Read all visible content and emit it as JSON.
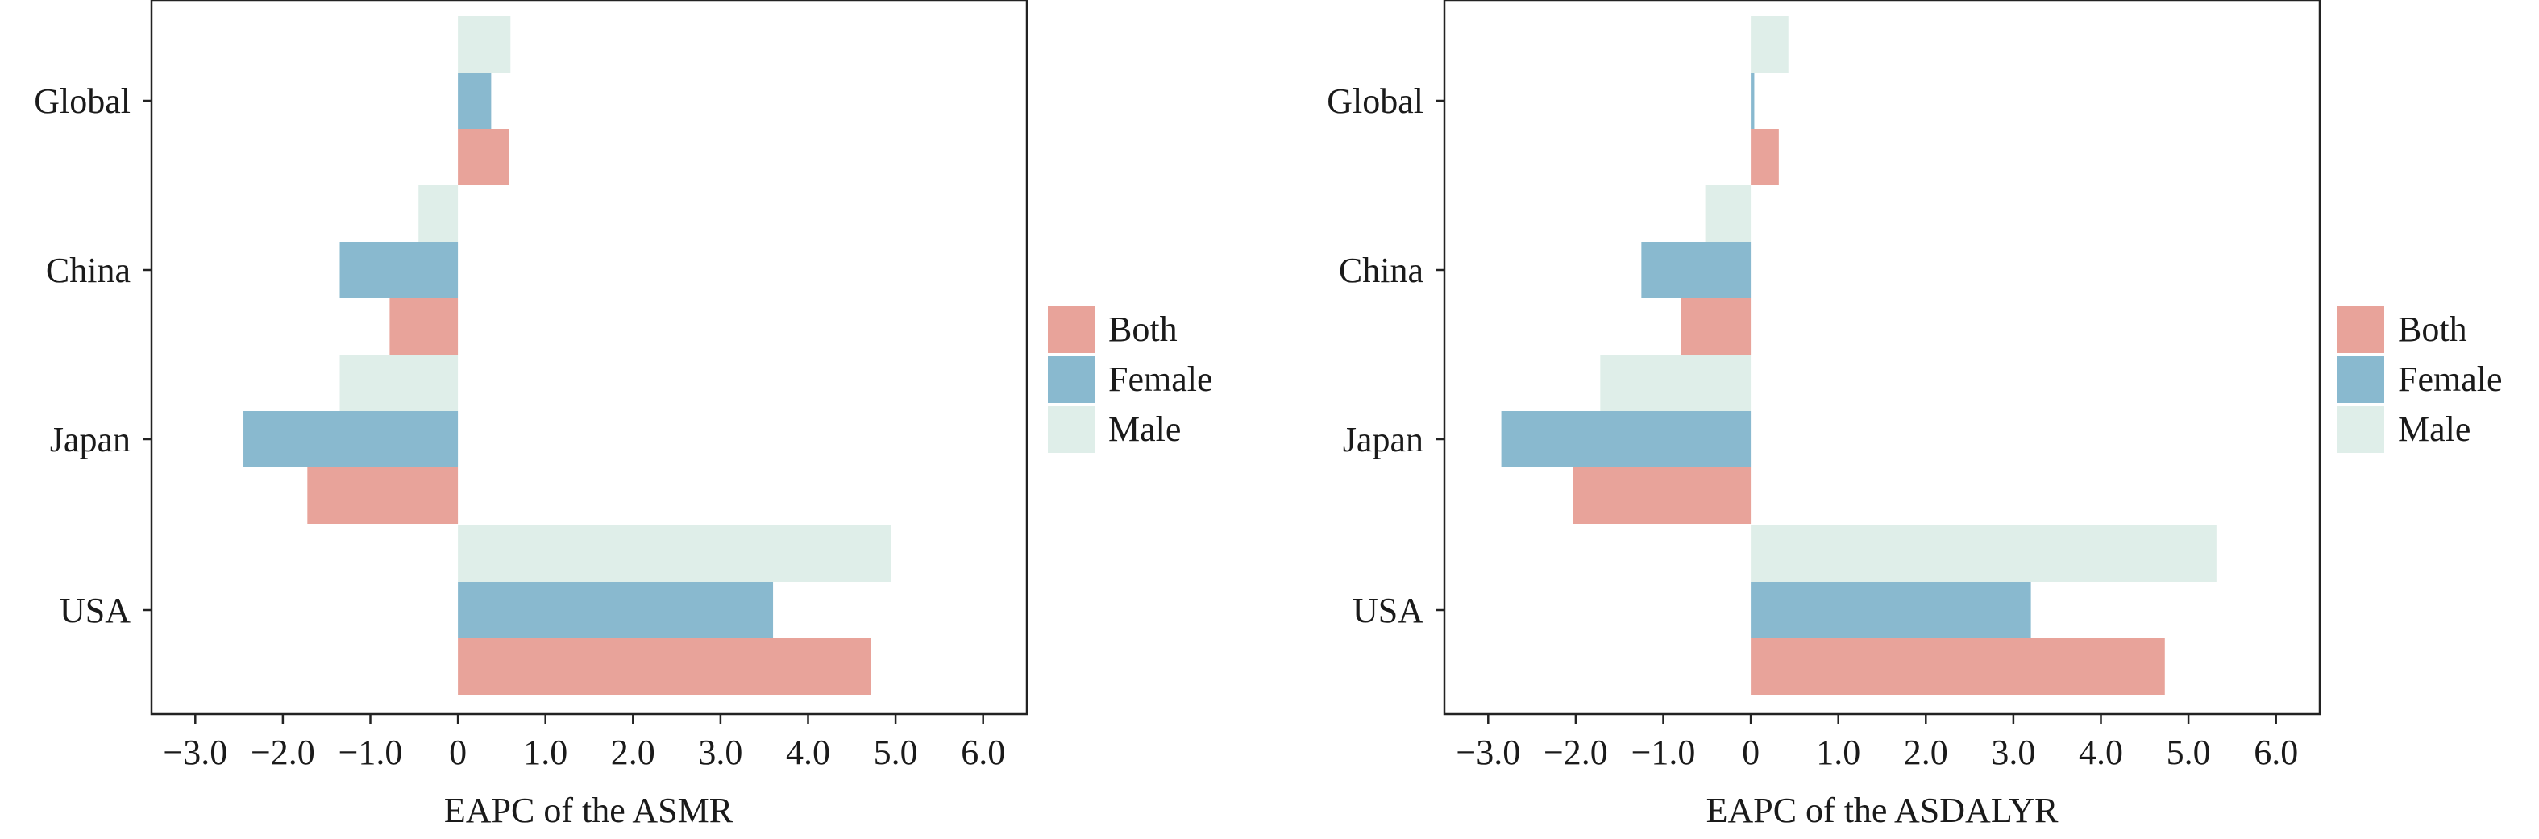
{
  "chart_data": [
    {
      "type": "bar",
      "orientation": "horizontal",
      "categories": [
        "Global",
        "China",
        "Japan",
        "USA"
      ],
      "series": [
        {
          "name": "Male",
          "color": "#dfeee9",
          "values": [
            0.6,
            -0.45,
            -1.35,
            4.95
          ]
        },
        {
          "name": "Female",
          "color": "#89b9cf",
          "values": [
            0.38,
            -1.35,
            -2.45,
            3.6
          ]
        },
        {
          "name": "Both",
          "color": "#e8a39a",
          "values": [
            0.58,
            -0.78,
            -1.72,
            4.72
          ]
        }
      ],
      "legend": [
        "Both",
        "Female",
        "Male"
      ],
      "xlabel": "EAPC of the ASMR",
      "xlim": [
        -3.5,
        6.5
      ],
      "ticks": [
        -3,
        -2,
        -1,
        0,
        1,
        2,
        3,
        4,
        5,
        6
      ],
      "tick_labels": [
        "−3.0",
        "−2.0",
        "−1.0",
        "0",
        "1.0",
        "2.0",
        "3.0",
        "4.0",
        "5.0",
        "6.0"
      ],
      "legend_position": "right"
    },
    {
      "type": "bar",
      "orientation": "horizontal",
      "categories": [
        "Global",
        "China",
        "Japan",
        "USA"
      ],
      "series": [
        {
          "name": "Male",
          "color": "#dfeee9",
          "values": [
            0.43,
            -0.52,
            -1.72,
            5.32
          ]
        },
        {
          "name": "Female",
          "color": "#89b9cf",
          "values": [
            0.04,
            -1.25,
            -2.85,
            3.2
          ]
        },
        {
          "name": "Both",
          "color": "#e8a39a",
          "values": [
            0.32,
            -0.8,
            -2.03,
            4.73
          ]
        }
      ],
      "legend": [
        "Both",
        "Female",
        "Male"
      ],
      "xlabel": "EAPC of the ASDALYR",
      "xlim": [
        -3.5,
        6.5
      ],
      "ticks": [
        -3,
        -2,
        -1,
        0,
        1,
        2,
        3,
        4,
        5,
        6
      ],
      "tick_labels": [
        "−3.0",
        "−2.0",
        "−1.0",
        "0",
        "1.0",
        "2.0",
        "3.0",
        "4.0",
        "5.0",
        "6.0"
      ],
      "legend_position": "right"
    }
  ]
}
